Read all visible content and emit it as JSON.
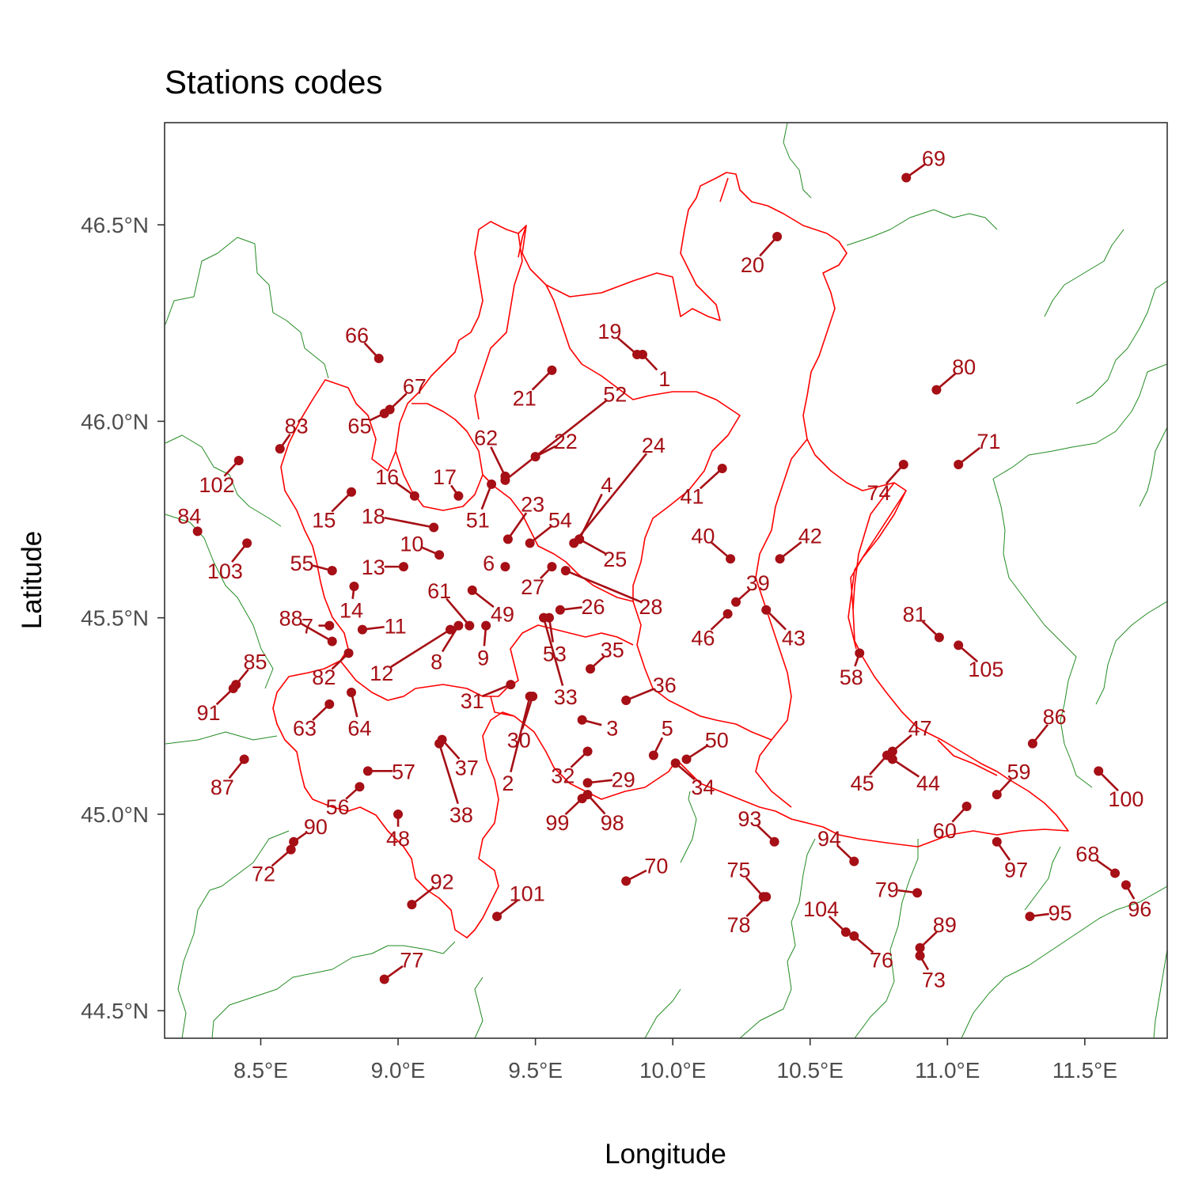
{
  "chart_data": {
    "type": "scatter",
    "title": "Stations codes",
    "xlabel": "Longitude",
    "ylabel": "Latitude",
    "xlim": [
      8.15,
      11.8
    ],
    "ylim": [
      44.43,
      46.76
    ],
    "x_ticks": [
      8.5,
      9.0,
      9.5,
      10.0,
      10.5,
      11.0,
      11.5
    ],
    "x_tick_labels": [
      "8.5°E",
      "9.0°E",
      "9.5°E",
      "10.0°E",
      "10.5°E",
      "11.0°E",
      "11.5°E"
    ],
    "y_ticks": [
      44.5,
      45.0,
      45.5,
      46.0,
      46.5
    ],
    "y_tick_labels": [
      "44.5°N",
      "45.0°N",
      "45.5°N",
      "46.0°N",
      "46.5°N"
    ],
    "grid": false,
    "colors": {
      "point": "#a50f15",
      "region_boundary": "#ff0000",
      "province_boundary": "#228b22",
      "panel_border": "#333333"
    },
    "stations": [
      {
        "code": "1",
        "lon": 9.89,
        "lat": 46.17,
        "label_lon": 9.97,
        "label_lat": 46.11
      },
      {
        "code": "2",
        "lon": 9.48,
        "lat": 45.3,
        "label_lon": 9.4,
        "label_lat": 45.08
      },
      {
        "code": "3",
        "lon": 9.67,
        "lat": 45.24,
        "label_lon": 9.78,
        "label_lat": 45.22
      },
      {
        "code": "4",
        "lon": 9.66,
        "lat": 45.7,
        "label_lon": 9.76,
        "label_lat": 45.84
      },
      {
        "code": "5",
        "lon": 9.93,
        "lat": 45.15,
        "label_lon": 9.98,
        "label_lat": 45.22
      },
      {
        "code": "6",
        "lon": 9.39,
        "lat": 45.63,
        "label_lon": 9.33,
        "label_lat": 45.64
      },
      {
        "code": "7",
        "lon": 8.75,
        "lat": 45.48,
        "label_lon": 8.67,
        "label_lat": 45.48
      },
      {
        "code": "8",
        "lon": 9.22,
        "lat": 45.48,
        "label_lon": 9.14,
        "label_lat": 45.39
      },
      {
        "code": "9",
        "lon": 9.32,
        "lat": 45.48,
        "label_lon": 9.31,
        "label_lat": 45.4
      },
      {
        "code": "10",
        "lon": 9.15,
        "lat": 45.66,
        "label_lon": 9.05,
        "label_lat": 45.69
      },
      {
        "code": "11",
        "lon": 8.87,
        "lat": 45.47,
        "label_lon": 8.99,
        "label_lat": 45.48
      },
      {
        "code": "12",
        "lon": 9.19,
        "lat": 45.47,
        "label_lon": 8.94,
        "label_lat": 45.36
      },
      {
        "code": "13",
        "lon": 9.02,
        "lat": 45.63,
        "label_lon": 8.91,
        "label_lat": 45.63
      },
      {
        "code": "14",
        "lon": 8.84,
        "lat": 45.58,
        "label_lon": 8.83,
        "label_lat": 45.52
      },
      {
        "code": "15",
        "lon": 8.83,
        "lat": 45.82,
        "label_lon": 8.73,
        "label_lat": 45.75
      },
      {
        "code": "16",
        "lon": 9.06,
        "lat": 45.81,
        "label_lon": 8.96,
        "label_lat": 45.86
      },
      {
        "code": "17",
        "lon": 9.22,
        "lat": 45.81,
        "label_lon": 9.17,
        "label_lat": 45.86
      },
      {
        "code": "18",
        "lon": 9.13,
        "lat": 45.73,
        "label_lon": 8.91,
        "label_lat": 45.76
      },
      {
        "code": "19",
        "lon": 9.87,
        "lat": 46.17,
        "label_lon": 9.77,
        "label_lat": 46.23
      },
      {
        "code": "20",
        "lon": 10.38,
        "lat": 46.47,
        "label_lon": 10.29,
        "label_lat": 46.4
      },
      {
        "code": "21",
        "lon": 9.56,
        "lat": 46.13,
        "label_lon": 9.46,
        "label_lat": 46.06
      },
      {
        "code": "22",
        "lon": 9.5,
        "lat": 45.91,
        "label_lon": 9.61,
        "label_lat": 45.95
      },
      {
        "code": "23",
        "lon": 9.4,
        "lat": 45.7,
        "label_lon": 9.49,
        "label_lat": 45.79
      },
      {
        "code": "24",
        "lon": 9.64,
        "lat": 45.69,
        "label_lon": 9.93,
        "label_lat": 45.94
      },
      {
        "code": "25",
        "lon": 9.66,
        "lat": 45.7,
        "label_lon": 9.79,
        "label_lat": 45.65
      },
      {
        "code": "26",
        "lon": 9.59,
        "lat": 45.52,
        "label_lon": 9.71,
        "label_lat": 45.53
      },
      {
        "code": "27",
        "lon": 9.56,
        "lat": 45.63,
        "label_lon": 9.49,
        "label_lat": 45.58
      },
      {
        "code": "28",
        "lon": 9.61,
        "lat": 45.62,
        "label_lon": 9.92,
        "label_lat": 45.53
      },
      {
        "code": "29",
        "lon": 9.69,
        "lat": 45.08,
        "label_lon": 9.82,
        "label_lat": 45.09
      },
      {
        "code": "30",
        "lon": 9.49,
        "lat": 45.3,
        "label_lon": 9.44,
        "label_lat": 45.19
      },
      {
        "code": "31",
        "lon": 9.41,
        "lat": 45.33,
        "label_lon": 9.27,
        "label_lat": 45.29
      },
      {
        "code": "32",
        "lon": 9.69,
        "lat": 45.16,
        "label_lon": 9.6,
        "label_lat": 45.1
      },
      {
        "code": "33",
        "lon": 9.53,
        "lat": 45.5,
        "label_lon": 9.61,
        "label_lat": 45.3
      },
      {
        "code": "34",
        "lon": 10.01,
        "lat": 45.13,
        "label_lon": 10.11,
        "label_lat": 45.07
      },
      {
        "code": "35",
        "lon": 9.7,
        "lat": 45.37,
        "label_lon": 9.78,
        "label_lat": 45.42
      },
      {
        "code": "36",
        "lon": 9.83,
        "lat": 45.29,
        "label_lon": 9.97,
        "label_lat": 45.33
      },
      {
        "code": "37",
        "lon": 9.16,
        "lat": 45.19,
        "label_lon": 9.25,
        "label_lat": 45.12
      },
      {
        "code": "38",
        "lon": 9.15,
        "lat": 45.18,
        "label_lon": 9.23,
        "label_lat": 45.0
      },
      {
        "code": "39",
        "lon": 10.23,
        "lat": 45.54,
        "label_lon": 10.31,
        "label_lat": 45.59
      },
      {
        "code": "40",
        "lon": 10.21,
        "lat": 45.65,
        "label_lon": 10.11,
        "label_lat": 45.71
      },
      {
        "code": "41",
        "lon": 10.18,
        "lat": 45.88,
        "label_lon": 10.07,
        "label_lat": 45.81
      },
      {
        "code": "42",
        "lon": 10.39,
        "lat": 45.65,
        "label_lon": 10.5,
        "label_lat": 45.71
      },
      {
        "code": "43",
        "lon": 10.34,
        "lat": 45.52,
        "label_lon": 10.44,
        "label_lat": 45.45
      },
      {
        "code": "44",
        "lon": 10.8,
        "lat": 45.14,
        "label_lon": 10.93,
        "label_lat": 45.08
      },
      {
        "code": "45",
        "lon": 10.78,
        "lat": 45.15,
        "label_lon": 10.69,
        "label_lat": 45.08
      },
      {
        "code": "46",
        "lon": 10.2,
        "lat": 45.51,
        "label_lon": 10.11,
        "label_lat": 45.45
      },
      {
        "code": "47",
        "lon": 10.8,
        "lat": 45.16,
        "label_lon": 10.9,
        "label_lat": 45.22
      },
      {
        "code": "48",
        "lon": 9.0,
        "lat": 45.0,
        "label_lon": 9.0,
        "label_lat": 44.94
      },
      {
        "code": "49",
        "lon": 9.27,
        "lat": 45.57,
        "label_lon": 9.38,
        "label_lat": 45.51
      },
      {
        "code": "50",
        "lon": 10.05,
        "lat": 45.14,
        "label_lon": 10.16,
        "label_lat": 45.19
      },
      {
        "code": "51",
        "lon": 9.34,
        "lat": 45.84,
        "label_lon": 9.29,
        "label_lat": 45.75
      },
      {
        "code": "52",
        "lon": 9.39,
        "lat": 45.85,
        "label_lon": 9.79,
        "label_lat": 46.07
      },
      {
        "code": "53",
        "lon": 9.55,
        "lat": 45.5,
        "label_lon": 9.57,
        "label_lat": 45.41
      },
      {
        "code": "54",
        "lon": 9.48,
        "lat": 45.69,
        "label_lon": 9.59,
        "label_lat": 45.75
      },
      {
        "code": "55",
        "lon": 8.76,
        "lat": 45.62,
        "label_lon": 8.65,
        "label_lat": 45.64
      },
      {
        "code": "56",
        "lon": 8.86,
        "lat": 45.07,
        "label_lon": 8.78,
        "label_lat": 45.02
      },
      {
        "code": "57",
        "lon": 8.89,
        "lat": 45.11,
        "label_lon": 9.02,
        "label_lat": 45.11
      },
      {
        "code": "58",
        "lon": 10.68,
        "lat": 45.41,
        "label_lon": 10.65,
        "label_lat": 45.35
      },
      {
        "code": "59",
        "lon": 11.18,
        "lat": 45.05,
        "label_lon": 11.26,
        "label_lat": 45.11
      },
      {
        "code": "60",
        "lon": 11.07,
        "lat": 45.02,
        "label_lon": 10.99,
        "label_lat": 44.96
      },
      {
        "code": "61",
        "lon": 9.26,
        "lat": 45.48,
        "label_lon": 9.15,
        "label_lat": 45.57
      },
      {
        "code": "62",
        "lon": 9.39,
        "lat": 45.86,
        "label_lon": 9.32,
        "label_lat": 45.96
      },
      {
        "code": "63",
        "lon": 8.75,
        "lat": 45.28,
        "label_lon": 8.66,
        "label_lat": 45.22
      },
      {
        "code": "64",
        "lon": 8.83,
        "lat": 45.31,
        "label_lon": 8.86,
        "label_lat": 45.22
      },
      {
        "code": "65",
        "lon": 8.95,
        "lat": 46.02,
        "label_lon": 8.86,
        "label_lat": 45.99
      },
      {
        "code": "66",
        "lon": 8.93,
        "lat": 46.16,
        "label_lon": 8.85,
        "label_lat": 46.22
      },
      {
        "code": "67",
        "lon": 8.97,
        "lat": 46.03,
        "label_lon": 9.06,
        "label_lat": 46.09
      },
      {
        "code": "68",
        "lon": 11.61,
        "lat": 44.85,
        "label_lon": 11.51,
        "label_lat": 44.9
      },
      {
        "code": "69",
        "lon": 10.85,
        "lat": 46.62,
        "label_lon": 10.95,
        "label_lat": 46.67
      },
      {
        "code": "70",
        "lon": 9.83,
        "lat": 44.83,
        "label_lon": 9.94,
        "label_lat": 44.87
      },
      {
        "code": "71",
        "lon": 11.04,
        "lat": 45.89,
        "label_lon": 11.15,
        "label_lat": 45.95
      },
      {
        "code": "72",
        "lon": 8.61,
        "lat": 44.91,
        "label_lon": 8.51,
        "label_lat": 44.85
      },
      {
        "code": "73",
        "lon": 10.9,
        "lat": 44.64,
        "label_lon": 10.95,
        "label_lat": 44.58
      },
      {
        "code": "74",
        "lon": 10.84,
        "lat": 45.89,
        "label_lon": 10.75,
        "label_lat": 45.82
      },
      {
        "code": "75",
        "lon": 10.33,
        "lat": 44.79,
        "label_lon": 10.24,
        "label_lat": 44.86
      },
      {
        "code": "76",
        "lon": 10.66,
        "lat": 44.69,
        "label_lon": 10.76,
        "label_lat": 44.63
      },
      {
        "code": "77",
        "lon": 8.95,
        "lat": 44.58,
        "label_lon": 9.05,
        "label_lat": 44.63
      },
      {
        "code": "78",
        "lon": 10.34,
        "lat": 44.79,
        "label_lon": 10.24,
        "label_lat": 44.72
      },
      {
        "code": "79",
        "lon": 10.89,
        "lat": 44.8,
        "label_lon": 10.78,
        "label_lat": 44.81
      },
      {
        "code": "80",
        "lon": 10.96,
        "lat": 46.08,
        "label_lon": 11.06,
        "label_lat": 46.14
      },
      {
        "code": "81",
        "lon": 10.97,
        "lat": 45.45,
        "label_lon": 10.88,
        "label_lat": 45.51
      },
      {
        "code": "82",
        "lon": 8.82,
        "lat": 45.41,
        "label_lon": 8.73,
        "label_lat": 45.35
      },
      {
        "code": "83",
        "lon": 8.57,
        "lat": 45.93,
        "label_lon": 8.63,
        "label_lat": 45.99
      },
      {
        "code": "84",
        "lon": 8.27,
        "lat": 45.72,
        "label_lon": 8.24,
        "label_lat": 45.76
      },
      {
        "code": "85",
        "lon": 8.41,
        "lat": 45.33,
        "label_lon": 8.48,
        "label_lat": 45.39
      },
      {
        "code": "86",
        "lon": 11.31,
        "lat": 45.18,
        "label_lon": 11.39,
        "label_lat": 45.25
      },
      {
        "code": "87",
        "lon": 8.44,
        "lat": 45.14,
        "label_lon": 8.36,
        "label_lat": 45.07
      },
      {
        "code": "88",
        "lon": 8.76,
        "lat": 45.44,
        "label_lon": 8.61,
        "label_lat": 45.5
      },
      {
        "code": "89",
        "lon": 10.9,
        "lat": 44.66,
        "label_lon": 10.99,
        "label_lat": 44.72
      },
      {
        "code": "90",
        "lon": 8.62,
        "lat": 44.93,
        "label_lon": 8.7,
        "label_lat": 44.97
      },
      {
        "code": "91",
        "lon": 8.4,
        "lat": 45.32,
        "label_lon": 8.31,
        "label_lat": 45.26
      },
      {
        "code": "92",
        "lon": 9.05,
        "lat": 44.77,
        "label_lon": 9.16,
        "label_lat": 44.83
      },
      {
        "code": "93",
        "lon": 10.37,
        "lat": 44.93,
        "label_lon": 10.28,
        "label_lat": 44.99
      },
      {
        "code": "94",
        "lon": 10.66,
        "lat": 44.88,
        "label_lon": 10.57,
        "label_lat": 44.94
      },
      {
        "code": "95",
        "lon": 11.3,
        "lat": 44.74,
        "label_lon": 11.41,
        "label_lat": 44.75
      },
      {
        "code": "96",
        "lon": 11.65,
        "lat": 44.82,
        "label_lon": 11.7,
        "label_lat": 44.76
      },
      {
        "code": "97",
        "lon": 11.18,
        "lat": 44.93,
        "label_lon": 11.25,
        "label_lat": 44.86
      },
      {
        "code": "98",
        "lon": 9.69,
        "lat": 45.05,
        "label_lon": 9.78,
        "label_lat": 44.98
      },
      {
        "code": "99",
        "lon": 9.67,
        "lat": 45.04,
        "label_lon": 9.58,
        "label_lat": 44.98
      },
      {
        "code": "100",
        "lon": 11.55,
        "lat": 45.11,
        "label_lon": 11.65,
        "label_lat": 45.04
      },
      {
        "code": "101",
        "lon": 9.36,
        "lat": 44.74,
        "label_lon": 9.47,
        "label_lat": 44.8
      },
      {
        "code": "102",
        "lon": 8.42,
        "lat": 45.9,
        "label_lon": 8.34,
        "label_lat": 45.84
      },
      {
        "code": "103",
        "lon": 8.45,
        "lat": 45.69,
        "label_lon": 8.37,
        "label_lat": 45.62
      },
      {
        "code": "104",
        "lon": 10.63,
        "lat": 44.7,
        "label_lon": 10.54,
        "label_lat": 44.76
      },
      {
        "code": "105",
        "lon": 11.04,
        "lat": 45.43,
        "label_lon": 11.14,
        "label_lat": 45.37
      }
    ]
  }
}
